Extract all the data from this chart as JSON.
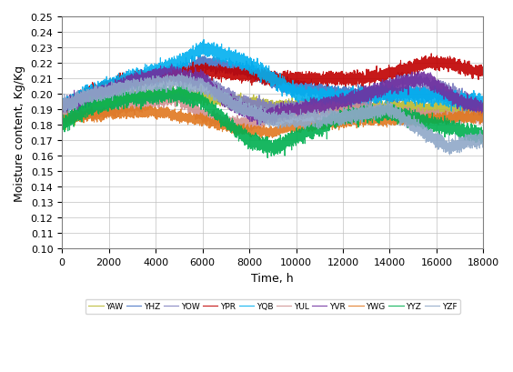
{
  "title": "",
  "xlabel": "Time, h",
  "ylabel": "Moisture content, Kg/Kg",
  "xlim": [
    0,
    18000
  ],
  "ylim": [
    0.1,
    0.25
  ],
  "yticks": [
    0.1,
    0.11,
    0.12,
    0.13,
    0.14,
    0.15,
    0.16,
    0.17,
    0.18,
    0.19,
    0.2,
    0.21,
    0.22,
    0.23,
    0.24,
    0.25
  ],
  "xticks": [
    0,
    2000,
    4000,
    6000,
    8000,
    10000,
    12000,
    14000,
    16000,
    18000
  ],
  "series": {
    "YAW": {
      "color": "#b8b830",
      "lw": 0.8
    },
    "YHZ": {
      "color": "#4472c4",
      "lw": 0.8
    },
    "YOW": {
      "color": "#7f7fbf",
      "lw": 0.8
    },
    "YPR": {
      "color": "#c00000",
      "lw": 0.8
    },
    "YQB": {
      "color": "#00b0f0",
      "lw": 0.8
    },
    "YUL": {
      "color": "#d09090",
      "lw": 0.8
    },
    "YVR": {
      "color": "#7030a0",
      "lw": 0.8
    },
    "YWG": {
      "color": "#e07820",
      "lw": 0.8
    },
    "YYZ": {
      "color": "#00b050",
      "lw": 0.8
    },
    "YZF": {
      "color": "#8fa8c8",
      "lw": 0.8
    }
  },
  "legend_loc": "lower center",
  "legend_ncol": 10,
  "background_color": "#ffffff",
  "grid_color": "#c0c0c0",
  "font_size": 8
}
